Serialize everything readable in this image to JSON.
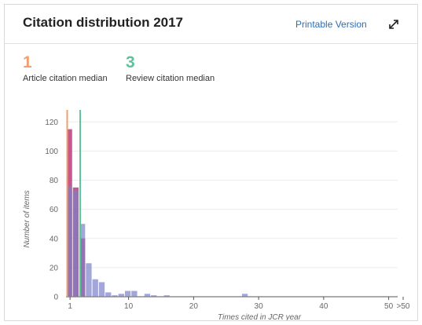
{
  "header": {
    "title": "Citation distribution 2017",
    "printable_label": "Printable Version",
    "expand_icon": "expand-icon"
  },
  "medians": {
    "article": {
      "value": "1",
      "label": "Article citation median",
      "color": "#f0a070"
    },
    "review": {
      "value": "3",
      "label": "Review citation median",
      "color": "#5cc39b"
    }
  },
  "chart_data": {
    "type": "bar",
    "xlabel": "Times cited in JCR year",
    "ylabel": "Number of items",
    "xlim": [
      0,
      51
    ],
    "ylim": [
      0,
      125
    ],
    "xticks": [
      {
        "value": 1,
        "label": "1"
      },
      {
        "value": 10,
        "label": "10"
      },
      {
        "value": 20,
        "label": "20"
      },
      {
        "value": 30,
        "label": "30"
      },
      {
        "value": 40,
        "label": "40"
      },
      {
        "value": 50,
        "label": "50"
      },
      {
        "value": 53,
        "label": ">50"
      }
    ],
    "yticks": [
      0,
      20,
      40,
      60,
      80,
      100,
      120
    ],
    "grid": true,
    "series": [
      {
        "color": "#c0387a",
        "x": [
          0,
          1,
          2
        ],
        "values": [
          115,
          75,
          40
        ]
      },
      {
        "color": "#7b80c8",
        "x": [
          0,
          1,
          2,
          3,
          4,
          5,
          6,
          7,
          8,
          9,
          10,
          12,
          13,
          15,
          27
        ],
        "values": [
          76,
          73,
          50,
          23,
          12,
          10,
          3,
          1,
          2,
          4,
          4,
          2,
          1,
          1,
          2
        ]
      }
    ],
    "median_lines": [
      {
        "x": 0,
        "color": "#f0a070"
      },
      {
        "x": 2,
        "color": "#5cc39b"
      }
    ]
  }
}
